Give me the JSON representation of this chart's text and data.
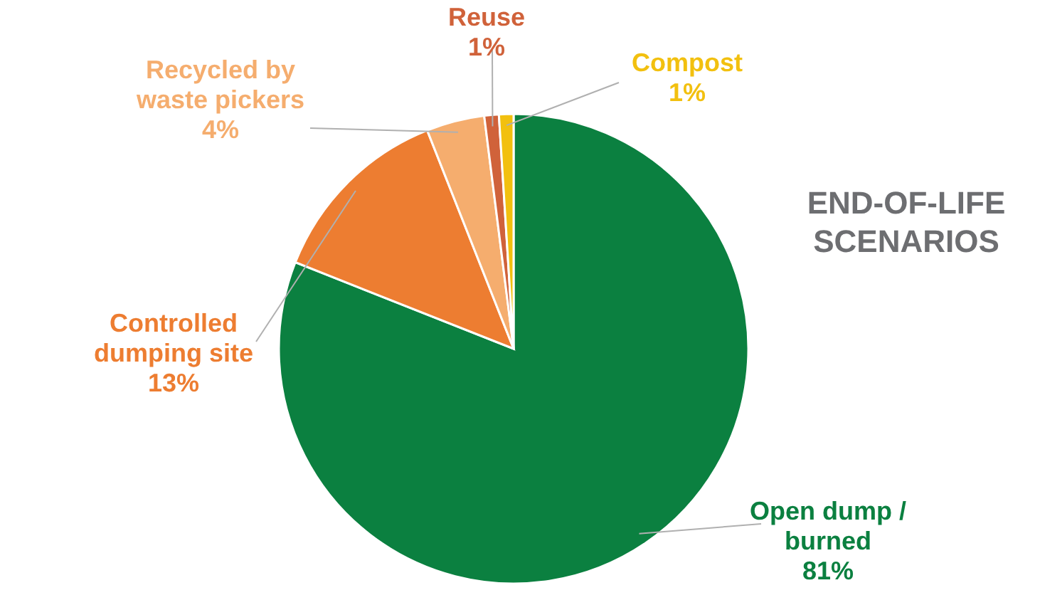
{
  "chart_data": {
    "type": "pie",
    "title": "END-OF-LIFE SCENARIOS",
    "categories": [
      "Open dump / burned",
      "Controlled dumping site",
      "Recycled by waste pickers",
      "Reuse",
      "Compost"
    ],
    "values": [
      81,
      13,
      4,
      1,
      1
    ],
    "value_labels": [
      "81%",
      "13%",
      "4%",
      "1%",
      "1%"
    ],
    "colors": [
      "#0b8040",
      "#ed7d31",
      "#f5ad6e",
      "#d0623a",
      "#f2c00f"
    ]
  }
}
